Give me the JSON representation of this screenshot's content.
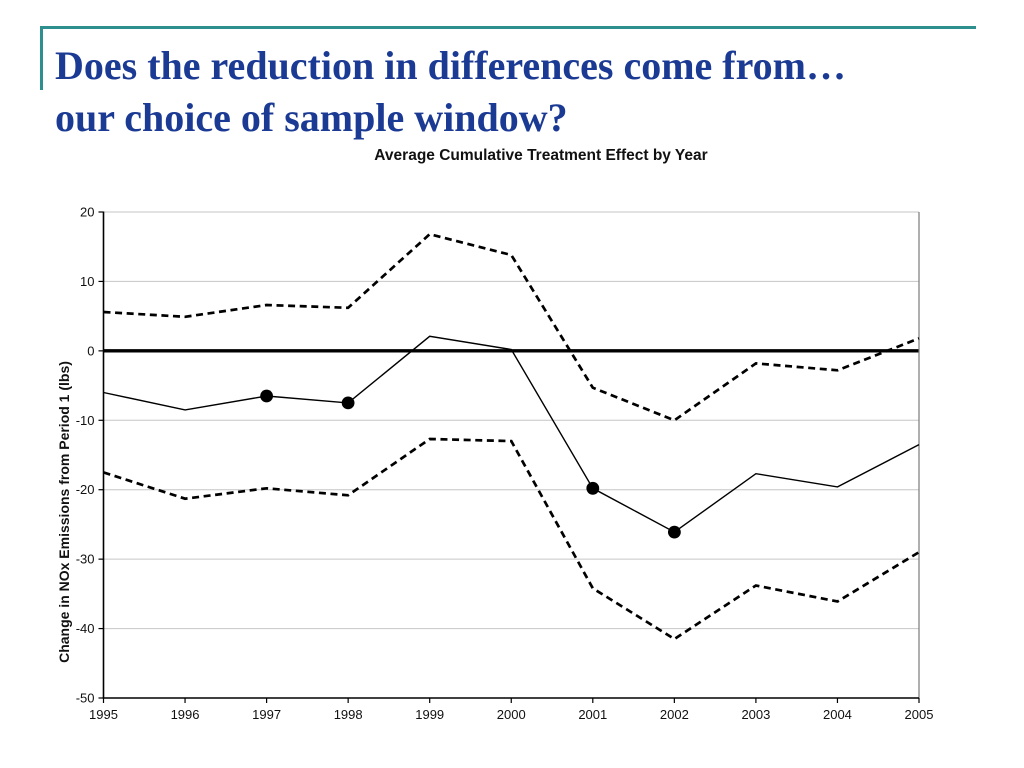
{
  "slide": {
    "title_line1": "Does the reduction in differences come from…",
    "title_line2": "our choice of sample window?",
    "title_color": "#1B3A94",
    "accent_color": "#2E8F8F"
  },
  "chart_data": {
    "type": "line",
    "title": "Average Cumulative Treatment Effect by Year",
    "xlabel": "",
    "ylabel": "Change in NOx Emissions from Period 1 (lbs)",
    "categories": [
      "1995",
      "1996",
      "1997",
      "1998",
      "1999",
      "2000",
      "2001",
      "2002",
      "2003",
      "2004",
      "2005"
    ],
    "ylim": [
      -50,
      20
    ],
    "ytick_labels": [
      "20",
      "10",
      "0",
      "-10",
      "-20",
      "-30",
      "-40",
      "-50"
    ],
    "grid": "horizontal",
    "legend": "none",
    "zero_line_bold": true,
    "line_color": "#000000",
    "grid_color": "#C6C6C6",
    "axis_color": "#000000",
    "right_border_color": "#7A7A7A",
    "series": [
      {
        "name": "average-cumulative-treatment-effect",
        "style": "solid",
        "marker": "filled-circle",
        "values": [
          -6.0,
          -8.5,
          -6.5,
          -7.5,
          2.1,
          0.2,
          -19.8,
          -26.1,
          -17.7,
          -19.6,
          -13.5
        ],
        "markers": [
          false,
          false,
          true,
          true,
          false,
          false,
          true,
          true,
          false,
          false,
          false
        ]
      },
      {
        "name": "upper-dashed-band",
        "style": "dashed",
        "values": [
          5.6,
          4.9,
          6.6,
          6.2,
          16.8,
          13.8,
          -5.3,
          -10.0,
          -1.8,
          -2.8,
          1.8
        ]
      },
      {
        "name": "lower-dashed-band",
        "style": "dashed",
        "values": [
          -17.5,
          -21.3,
          -19.8,
          -20.8,
          -12.7,
          -13.0,
          -34.2,
          -41.5,
          -33.8,
          -36.1,
          -29.0
        ]
      }
    ]
  }
}
